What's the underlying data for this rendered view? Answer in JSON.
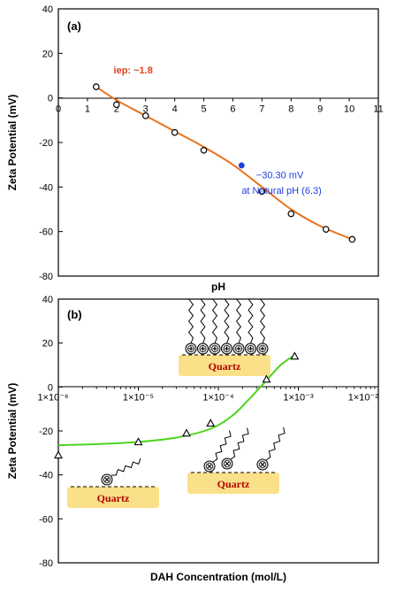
{
  "figure": {
    "colors": {
      "frame": "#000000",
      "fit_a": "#e8731c",
      "fit_b": "#4fd41c",
      "natural_point": "#1f3fe0",
      "iep_text": "#e0401a",
      "natural_text": "#1f3fe0",
      "quartz_fill": "#fbe08a",
      "quartz_text": "#b00000"
    },
    "icons": {
      "collector_head": "circled-plus-molecule-icon",
      "collector_head_neg": "circled-x-molecule-icon"
    }
  },
  "chart_data": [
    {
      "type": "line",
      "panel_label": "(a)",
      "title": "",
      "xlabel": "pH",
      "ylabel": "Zeta Potential (mV)",
      "xlim": [
        0,
        11
      ],
      "ylim": [
        -80,
        40
      ],
      "x_ticks": [
        "0",
        "1",
        "2",
        "3",
        "4",
        "5",
        "6",
        "7",
        "8",
        "9",
        "10",
        "11"
      ],
      "y_ticks": [
        "40",
        "20",
        "0",
        "-20",
        "-40",
        "-60",
        "-80"
      ],
      "grid": false,
      "series": [
        {
          "marker": "open-circle",
          "x": [
            1.3,
            2.0,
            3.0,
            4.0,
            5.0,
            7.0,
            8.0,
            9.2,
            10.1
          ],
          "y": [
            5.0,
            -3.0,
            -8.0,
            -15.5,
            -23.5,
            -42.0,
            -52.0,
            -59.0,
            -63.5
          ]
        },
        {
          "marker": "filled-circle",
          "x": [
            6.3
          ],
          "y": [
            -30.3
          ]
        }
      ],
      "fit_curve": {
        "x": [
          1.3,
          2.0,
          3.0,
          4.0,
          5.0,
          6.0,
          7.0,
          8.0,
          9.0,
          10.1
        ],
        "y": [
          5.0,
          -1.0,
          -8.0,
          -15.0,
          -22.0,
          -30.0,
          -40.0,
          -50.0,
          -57.5,
          -63.5
        ]
      },
      "annotations": [
        {
          "text": "iep: ~1.8",
          "x": 1.9,
          "y": 11
        },
        {
          "text": "−30.30 mV",
          "x": 6.8,
          "y": -36
        },
        {
          "text": "at Natural pH (6.3)",
          "x": 6.3,
          "y": -43
        }
      ]
    },
    {
      "type": "line",
      "panel_label": "(b)",
      "title": "",
      "xlabel": "DAH Concentration (mol/L)",
      "ylabel": "Zeta Potential (mV)",
      "x_scale": "log",
      "xlim": [
        1e-06,
        0.01
      ],
      "ylim": [
        -80,
        40
      ],
      "x_ticks": [
        "1×10⁻⁶",
        "1×10⁻⁵",
        "1×10⁻⁴",
        "1×10⁻³",
        "1×10⁻²"
      ],
      "y_ticks": [
        "40",
        "20",
        "0",
        "-20",
        "-40",
        "-60",
        "-80"
      ],
      "grid": false,
      "series": [
        {
          "marker": "open-triangle",
          "x": [
            1e-06,
            1e-05,
            4e-05,
            8e-05,
            0.0004,
            0.0009
          ],
          "y": [
            -31.0,
            -25.0,
            -21.0,
            -16.5,
            3.5,
            14.0
          ]
        }
      ],
      "fit_curve": {
        "x": [
          1e-06,
          3e-06,
          1e-05,
          3e-05,
          8e-05,
          0.00015,
          0.00025,
          0.0004,
          0.0006,
          0.0009
        ],
        "y": [
          -26.5,
          -26.0,
          -25.0,
          -23.0,
          -19.0,
          -13.0,
          -5.0,
          3.0,
          10.0,
          14.5
        ]
      },
      "insets": [
        {
          "label": "Quartz",
          "count": 7,
          "charge": "+"
        },
        {
          "label": "Quartz",
          "count": 1,
          "charge": "x"
        },
        {
          "label": "Quartz",
          "count": 3,
          "charge": "x"
        }
      ]
    }
  ]
}
